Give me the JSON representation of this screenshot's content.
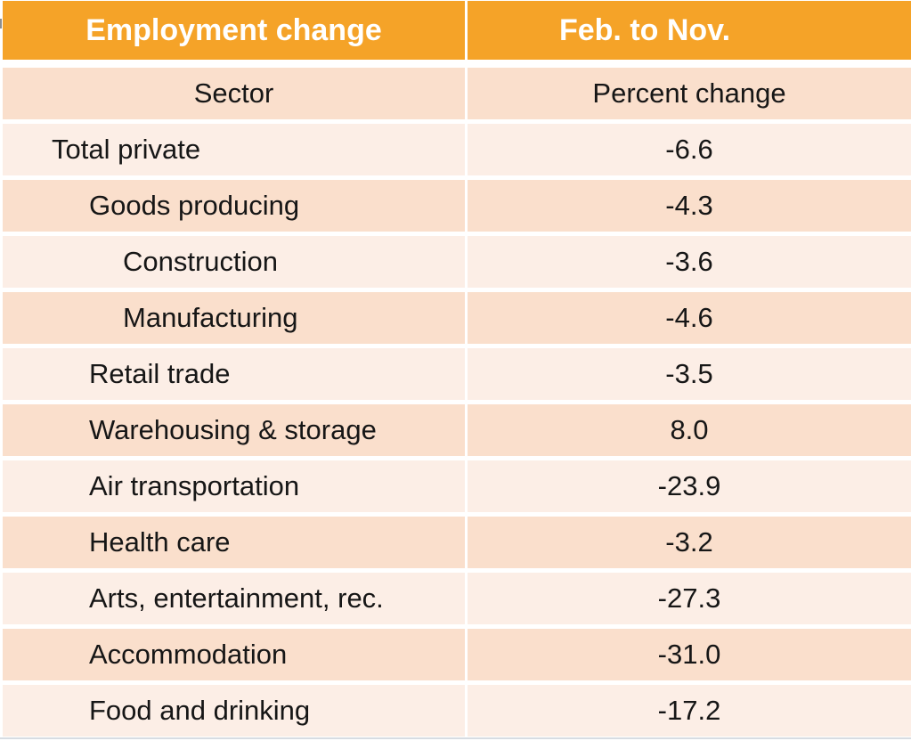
{
  "colors": {
    "header_bg": "#F5A328",
    "header_text": "#FFFFFF",
    "row_dark": "#FADFCC",
    "row_light": "#FCEEE6",
    "body_text": "#161616"
  },
  "table": {
    "header": {
      "title": "Employment change",
      "period": "Feb. to Nov."
    },
    "subheader": {
      "sector": "Sector",
      "value": "Percent change"
    },
    "rows": [
      {
        "sector": "Total private",
        "value": "-6.6",
        "indent": 0
      },
      {
        "sector": "Goods producing",
        "value": "-4.3",
        "indent": 1
      },
      {
        "sector": "Construction",
        "value": "-3.6",
        "indent": 2
      },
      {
        "sector": "Manufacturing",
        "value": "-4.6",
        "indent": 2
      },
      {
        "sector": "Retail trade",
        "value": "-3.5",
        "indent": 1
      },
      {
        "sector": "Warehousing & storage",
        "value": "8.0",
        "indent": 1
      },
      {
        "sector": "Air transportation",
        "value": "-23.9",
        "indent": 1
      },
      {
        "sector": "Health care",
        "value": "-3.2",
        "indent": 1
      },
      {
        "sector": "Arts, entertainment, rec.",
        "value": "-27.3",
        "indent": 1
      },
      {
        "sector": "Accommodation",
        "value": "-31.0",
        "indent": 1
      },
      {
        "sector": "Food and drinking",
        "value": "-17.2",
        "indent": 1
      }
    ]
  },
  "chart_data": {
    "type": "table",
    "title": "Employment change",
    "subtitle": "Feb. to Nov.",
    "columns": [
      "Sector",
      "Percent change"
    ],
    "categories": [
      "Total private",
      "Goods producing",
      "Construction",
      "Manufacturing",
      "Retail trade",
      "Warehousing & storage",
      "Air transportation",
      "Health care",
      "Arts, entertainment, rec.",
      "Accommodation",
      "Food and drinking"
    ],
    "values": [
      -6.6,
      -4.3,
      -3.6,
      -4.6,
      -3.5,
      8.0,
      -23.9,
      -3.2,
      -27.3,
      -31.0,
      -17.2
    ]
  }
}
